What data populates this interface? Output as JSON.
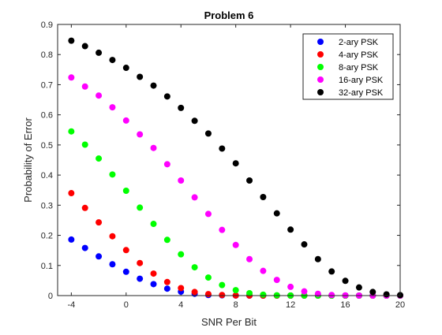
{
  "chart_data": {
    "type": "scatter",
    "title": "Problem 6",
    "xlabel": "SNR Per Bit",
    "ylabel": "Probability of Error",
    "xlim": [
      -5,
      20
    ],
    "ylim": [
      0,
      0.9
    ],
    "xticks": [
      -4,
      0,
      4,
      8,
      12,
      16,
      20
    ],
    "xtick_labels": [
      "-4",
      "0",
      "4",
      "8",
      "12",
      "16",
      "20"
    ],
    "yticks": [
      0,
      0.1,
      0.2,
      0.3,
      0.4,
      0.5,
      0.6,
      0.7,
      0.8,
      0.9
    ],
    "ytick_labels": [
      "0",
      "0.1",
      "0.2",
      "0.3",
      "0.4",
      "0.5",
      "0.6",
      "0.7",
      "0.8",
      "0.9"
    ],
    "grid": false,
    "legend_position": "top-right",
    "x": [
      -4,
      -3,
      -2,
      -1,
      0,
      1,
      2,
      3,
      4,
      5,
      6,
      7,
      8,
      9,
      10,
      11,
      12,
      13,
      14,
      15,
      16,
      17,
      18,
      19,
      20
    ],
    "series": [
      {
        "name": "2-ary PSK",
        "color": "#0000ff",
        "values": [
          0.186,
          0.158,
          0.13,
          0.104,
          0.079,
          0.056,
          0.038,
          0.023,
          0.013,
          0.006,
          0.002,
          0.001,
          0.0002,
          3e-05,
          4e-06,
          0,
          0,
          0,
          0,
          0,
          0,
          0,
          0,
          0,
          0
        ]
      },
      {
        "name": "4-ary PSK",
        "color": "#ff0000",
        "values": [
          0.34,
          0.291,
          0.243,
          0.197,
          0.151,
          0.108,
          0.073,
          0.045,
          0.025,
          0.012,
          0.005,
          0.002,
          0.0004,
          7e-05,
          1e-05,
          0,
          0,
          0,
          0,
          0,
          0,
          0,
          0,
          0,
          0
        ]
      },
      {
        "name": "8-ary PSK",
        "color": "#00ff00",
        "values": [
          0.545,
          0.501,
          0.455,
          0.402,
          0.348,
          0.292,
          0.238,
          0.185,
          0.137,
          0.094,
          0.06,
          0.035,
          0.018,
          0.008,
          0.003,
          0.001,
          0.0003,
          5e-05,
          0,
          0,
          0,
          0,
          0,
          0,
          0
        ]
      },
      {
        "name": "16-ary PSK",
        "color": "#ff00ff",
        "values": [
          0.724,
          0.694,
          0.664,
          0.625,
          0.581,
          0.535,
          0.49,
          0.436,
          0.382,
          0.326,
          0.271,
          0.218,
          0.168,
          0.121,
          0.082,
          0.052,
          0.029,
          0.014,
          0.006,
          0.002,
          0.0007,
          0.0001,
          0,
          0,
          0
        ]
      },
      {
        "name": "32-ary PSK",
        "color": "#000000",
        "values": [
          0.846,
          0.828,
          0.806,
          0.782,
          0.756,
          0.726,
          0.697,
          0.661,
          0.623,
          0.58,
          0.538,
          0.488,
          0.439,
          0.382,
          0.327,
          0.273,
          0.219,
          0.17,
          0.121,
          0.08,
          0.049,
          0.027,
          0.012,
          0.004,
          0.0015
        ]
      }
    ]
  }
}
